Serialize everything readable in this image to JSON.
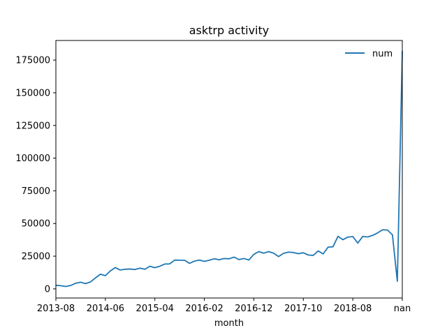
{
  "chart_data": {
    "type": "line",
    "title": "asktrp activity",
    "xlabel": "month",
    "ylabel": "",
    "x_tick_labels": [
      "2013-08",
      "2014-06",
      "2015-04",
      "2016-02",
      "2016-12",
      "2017-10",
      "2018-08",
      "nan"
    ],
    "y_ticks": [
      0,
      25000,
      50000,
      75000,
      100000,
      125000,
      150000,
      175000
    ],
    "y_tick_labels": [
      "0",
      "25000",
      "50000",
      "75000",
      "100000",
      "125000",
      "150000",
      "175000"
    ],
    "ylim": [
      -7000,
      190000
    ],
    "grid": false,
    "legend": {
      "position": "top-right"
    },
    "series": [
      {
        "name": "num",
        "color": "#1f77b4",
        "values": [
          2700,
          2400,
          1800,
          2600,
          4300,
          5100,
          4000,
          5300,
          8400,
          11200,
          10100,
          13700,
          16300,
          14400,
          15000,
          15200,
          14800,
          15800,
          15000,
          17300,
          16200,
          17300,
          19000,
          19100,
          22000,
          21900,
          21900,
          19500,
          21200,
          22000,
          21000,
          21900,
          23000,
          22300,
          23200,
          23000,
          24300,
          22400,
          23200,
          22100,
          26400,
          28500,
          27300,
          28500,
          27300,
          24700,
          27200,
          28100,
          27800,
          26900,
          27600,
          25900,
          25600,
          29000,
          26700,
          31900,
          32200,
          40200,
          37600,
          39600,
          40000,
          35000,
          40100,
          39700,
          40900,
          42800,
          45200,
          45000,
          41400,
          5800,
          182000
        ]
      }
    ]
  }
}
